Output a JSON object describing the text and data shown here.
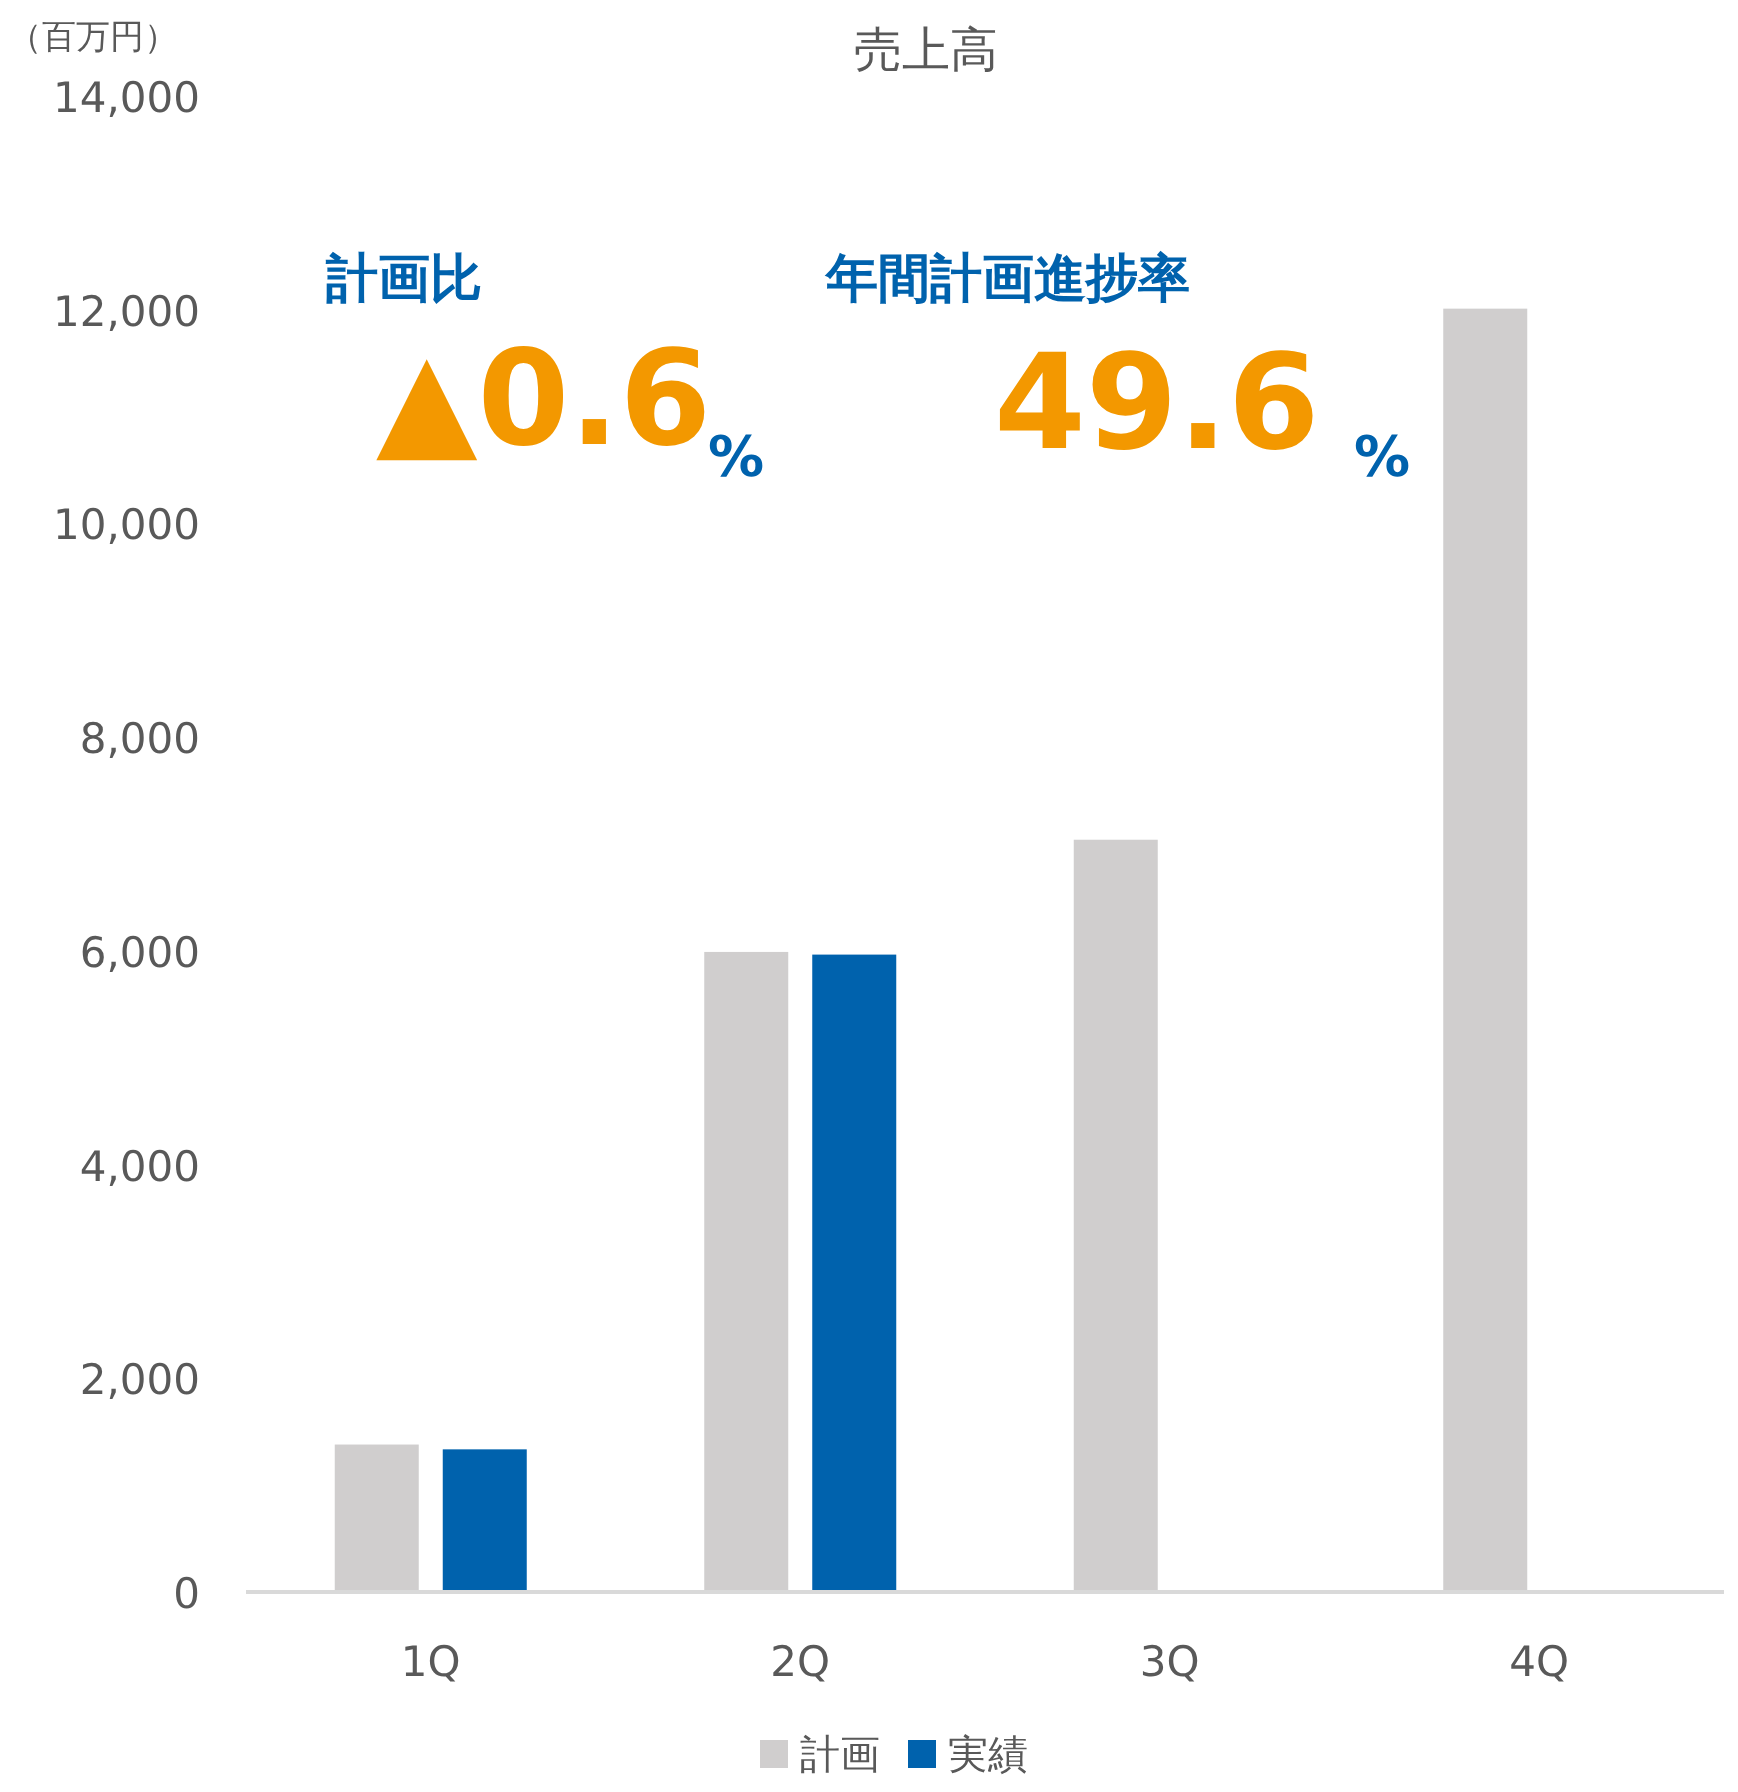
{
  "chart_data": {
    "type": "bar",
    "title": "売上高",
    "ylabel": "（百万円）",
    "categories": [
      "1Q",
      "2Q",
      "3Q",
      "4Q"
    ],
    "series": [
      {
        "name": "計画",
        "color": "#d0cece",
        "values": [
          1380,
          5990,
          7040,
          12010
        ]
      },
      {
        "name": "実績",
        "color": "#0062ad",
        "values": [
          1335,
          5965,
          null,
          null
        ]
      }
    ],
    "ylim": [
      0,
      14000
    ],
    "yticks": [
      0,
      {
        "value": 2000,
        "label": "2,000"
      },
      {
        "value": 4000,
        "label": "4,000"
      },
      {
        "value": 6000,
        "label": "6,000"
      },
      {
        "value": 8000,
        "label": "8,000"
      },
      {
        "value": 10000,
        "label": "10,000"
      },
      {
        "value": 12000,
        "label": "12,000"
      },
      {
        "value": 14000,
        "label": "14,000"
      }
    ],
    "grid": false,
    "legend": "bottom",
    "annotations": [
      "計画比",
      "▲0.6",
      "%",
      "年間計画進捗率",
      "49.6",
      "%"
    ]
  }
}
